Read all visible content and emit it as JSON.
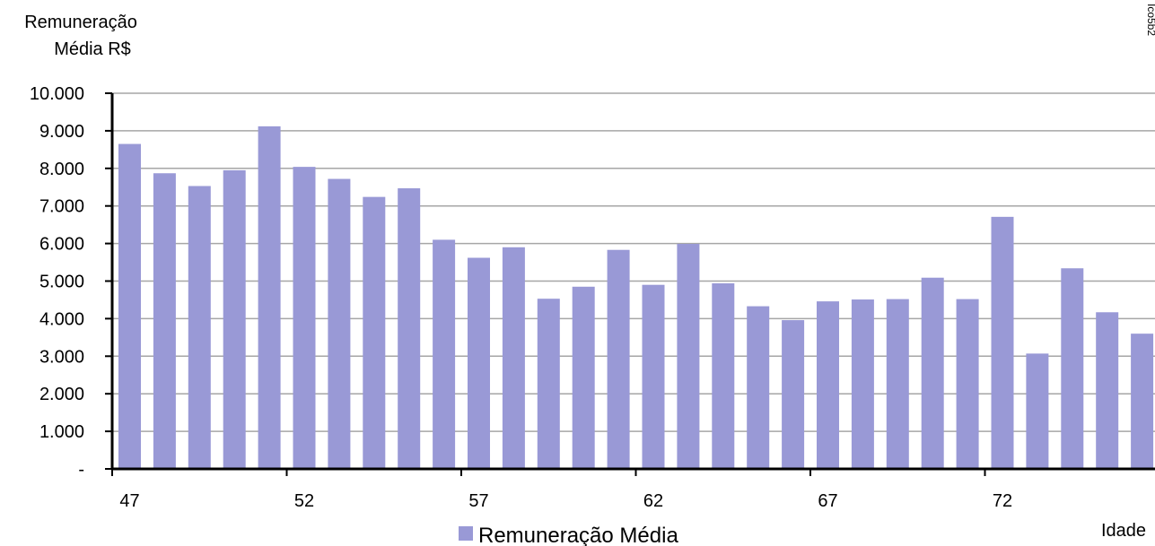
{
  "chart_data": {
    "type": "bar",
    "ylabel": [
      "Remuneração",
      "Média R$"
    ],
    "xlabel": "Idade",
    "categories": [
      47,
      48,
      49,
      50,
      51,
      52,
      53,
      54,
      55,
      56,
      57,
      58,
      59,
      60,
      61,
      62,
      63,
      64,
      65,
      66,
      67,
      68,
      69,
      70,
      71,
      72,
      73,
      74,
      75,
      76
    ],
    "x_tick_labels": [
      "47",
      "52",
      "57",
      "62",
      "67",
      "72"
    ],
    "x_tick_categories": [
      47,
      52,
      57,
      62,
      67,
      72
    ],
    "y_tick_labels": [
      "-",
      "1.000",
      "2.000",
      "3.000",
      "4.000",
      "5.000",
      "6.000",
      "7.000",
      "8.000",
      "9.000",
      "10.000"
    ],
    "ylim": [
      0,
      10000
    ],
    "y_major_step": 1000,
    "grid": true,
    "legend_position": "bottom",
    "corner_label": "Ico5b2",
    "series": [
      {
        "name": "Remuneração Média",
        "color": "#9999d6",
        "values": [
          8650,
          7870,
          7530,
          7950,
          9120,
          8040,
          7720,
          7240,
          7470,
          6100,
          5620,
          5900,
          4530,
          4850,
          5830,
          4900,
          5990,
          4940,
          4330,
          3960,
          4460,
          4510,
          4520,
          5090,
          4520,
          6710,
          3070,
          5340,
          4170,
          3600
        ]
      }
    ]
  }
}
